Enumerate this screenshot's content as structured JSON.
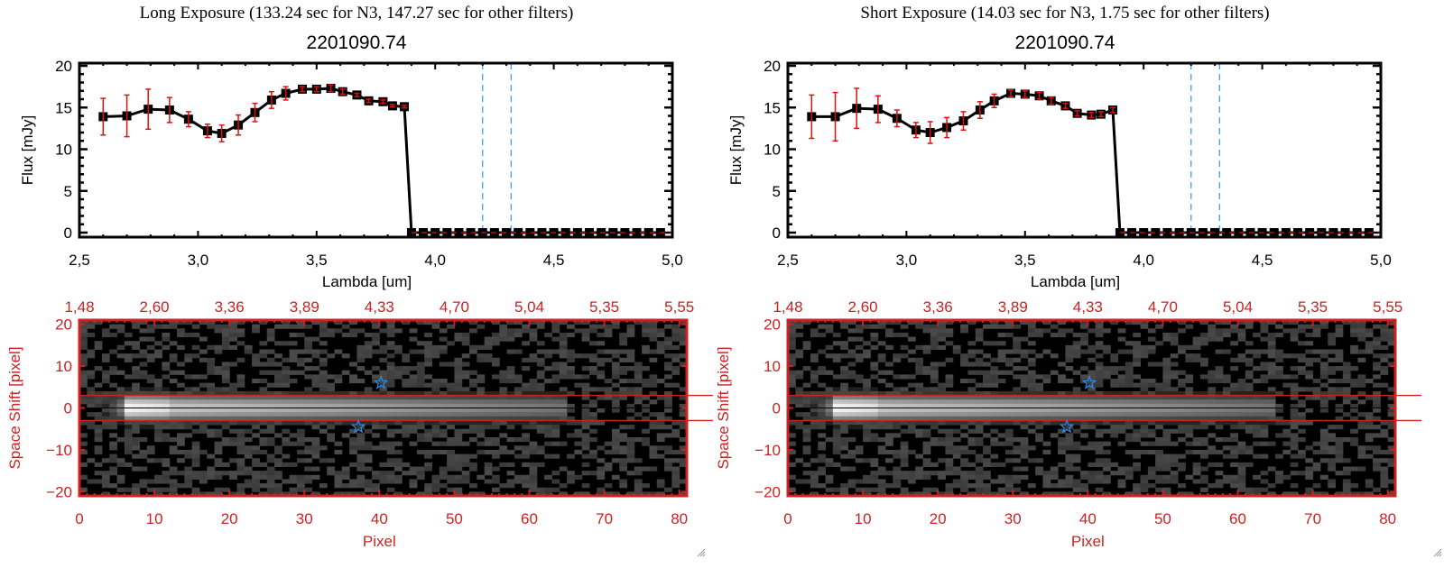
{
  "panels": [
    {
      "id": "long",
      "exposure_title": "Long Exposure (133.24 sec for N3, 147.27 sec for other filters)",
      "object_title": "2201090.74"
    },
    {
      "id": "short",
      "exposure_title": "Short Exposure (14.03 sec for N3, 1.75 sec for other filters)",
      "object_title": "2201090.74"
    }
  ],
  "colors": {
    "axis_red": "#cc2222",
    "errorbar_red": "#e01010",
    "line_black": "#000000",
    "marker_blue": "#2a8ae0",
    "vline_blue": "#3399ee"
  },
  "chart_data": [
    {
      "type": "line",
      "panel": "long",
      "title": "2201090.74",
      "xlabel": "Lambda [um]",
      "ylabel": "Flux [mJy]",
      "xlim": [
        2.5,
        5.0
      ],
      "ylim": [
        0,
        20
      ],
      "xticks": [
        "2.5",
        "3.0",
        "3.5",
        "4.0",
        "4.5",
        "5.0"
      ],
      "yticks": [
        "0",
        "5",
        "10",
        "15",
        "20"
      ],
      "vlines": [
        4.2,
        4.32
      ],
      "x": [
        2.6,
        2.7,
        2.79,
        2.88,
        2.96,
        3.04,
        3.1,
        3.17,
        3.24,
        3.31,
        3.37,
        3.44,
        3.5,
        3.56,
        3.61,
        3.67,
        3.72,
        3.78,
        3.82,
        3.87,
        3.9,
        3.95,
        4.0,
        4.05,
        4.1,
        4.15,
        4.2,
        4.25,
        4.3,
        4.35,
        4.4,
        4.45,
        4.5,
        4.55,
        4.6,
        4.65,
        4.7,
        4.75,
        4.8,
        4.85,
        4.9,
        4.95
      ],
      "y": [
        13.9,
        14.0,
        14.8,
        14.7,
        13.6,
        12.2,
        11.9,
        12.9,
        14.4,
        15.9,
        16.7,
        17.2,
        17.2,
        17.3,
        16.9,
        16.5,
        15.8,
        15.7,
        15.2,
        15.1,
        0,
        0,
        0,
        0,
        0,
        0,
        0,
        0,
        0,
        0,
        0,
        0,
        0,
        0,
        0,
        0,
        0,
        0,
        0,
        0,
        0,
        0
      ],
      "yerr": [
        2.2,
        2.5,
        2.4,
        1.5,
        0.9,
        0.8,
        1.0,
        1.2,
        1.1,
        1.0,
        0.8,
        0.3,
        0.3,
        0.4,
        0.3,
        0.2,
        0.2,
        0.2,
        0.15,
        0.15,
        0,
        0,
        0,
        0,
        0,
        0,
        0,
        0,
        0,
        0,
        0,
        0,
        0,
        0,
        0,
        0,
        0,
        0,
        0,
        0,
        0,
        0
      ]
    },
    {
      "type": "line",
      "panel": "short",
      "title": "2201090.74",
      "xlabel": "Lambda [um]",
      "ylabel": "Flux [mJy]",
      "xlim": [
        2.5,
        5.0
      ],
      "ylim": [
        0,
        20
      ],
      "xticks": [
        "2.5",
        "3.0",
        "3.5",
        "4.0",
        "4.5",
        "5.0"
      ],
      "yticks": [
        "0",
        "5",
        "10",
        "15",
        "20"
      ],
      "vlines": [
        4.2,
        4.32
      ],
      "x": [
        2.6,
        2.7,
        2.79,
        2.88,
        2.96,
        3.04,
        3.1,
        3.17,
        3.24,
        3.31,
        3.37,
        3.44,
        3.5,
        3.56,
        3.61,
        3.67,
        3.72,
        3.78,
        3.82,
        3.87,
        3.9,
        3.95,
        4.0,
        4.05,
        4.1,
        4.15,
        4.2,
        4.25,
        4.3,
        4.35,
        4.4,
        4.45,
        4.5,
        4.55,
        4.6,
        4.65,
        4.7,
        4.75,
        4.8,
        4.85,
        4.9,
        4.95
      ],
      "y": [
        13.9,
        13.9,
        14.9,
        14.8,
        13.7,
        12.3,
        12.0,
        12.6,
        13.4,
        14.7,
        15.8,
        16.7,
        16.6,
        16.4,
        15.8,
        15.2,
        14.3,
        14.1,
        14.2,
        14.7,
        0,
        0,
        0,
        0,
        0,
        0,
        0,
        0,
        0,
        0,
        0,
        0,
        0,
        0,
        0,
        0,
        0,
        0,
        0,
        0,
        0,
        0
      ],
      "yerr": [
        2.6,
        2.9,
        2.4,
        1.6,
        1.0,
        0.9,
        1.3,
        1.2,
        1.1,
        1.0,
        0.8,
        0.4,
        0.4,
        0.4,
        0.4,
        0.3,
        0.3,
        0.3,
        0.3,
        0.3,
        0,
        0,
        0,
        0,
        0,
        0,
        0,
        0,
        0,
        0,
        0,
        0,
        0,
        0,
        0,
        0,
        0,
        0,
        0,
        0,
        0,
        0
      ]
    },
    {
      "type": "heatmap",
      "panel": "long",
      "xlabel": "Pixel",
      "ylabel": "Space Shift [pixel]",
      "xlim": [
        0,
        81
      ],
      "ylim": [
        -21,
        21
      ],
      "xticks": [
        "0",
        "10",
        "20",
        "30",
        "40",
        "50",
        "60",
        "70",
        "80"
      ],
      "yticks": [
        "-20",
        "-10",
        "0",
        "10",
        "20"
      ],
      "top_xticks": [
        "1.48",
        "2.60",
        "3.36",
        "3.89",
        "4.33",
        "4.70",
        "5.04",
        "5.35",
        "5.55"
      ],
      "aperture_lines": [
        3,
        -3
      ],
      "center_line": 0,
      "star_markers": [
        [
          40.2,
          6
        ],
        [
          37.2,
          -4.5
        ]
      ]
    },
    {
      "type": "heatmap",
      "panel": "short",
      "xlabel": "Pixel",
      "ylabel": "Space Shift [pixel]",
      "xlim": [
        0,
        81
      ],
      "ylim": [
        -21,
        21
      ],
      "xticks": [
        "0",
        "10",
        "20",
        "30",
        "40",
        "50",
        "60",
        "70",
        "80"
      ],
      "yticks": [
        "-20",
        "-10",
        "0",
        "10",
        "20"
      ],
      "top_xticks": [
        "1.48",
        "2.60",
        "3.36",
        "3.89",
        "4.33",
        "4.70",
        "5.04",
        "5.35",
        "5.55"
      ],
      "aperture_lines": [
        3,
        -3
      ],
      "center_line": 0,
      "star_markers": [
        [
          40.2,
          6
        ],
        [
          37.2,
          -4.5
        ]
      ]
    }
  ]
}
